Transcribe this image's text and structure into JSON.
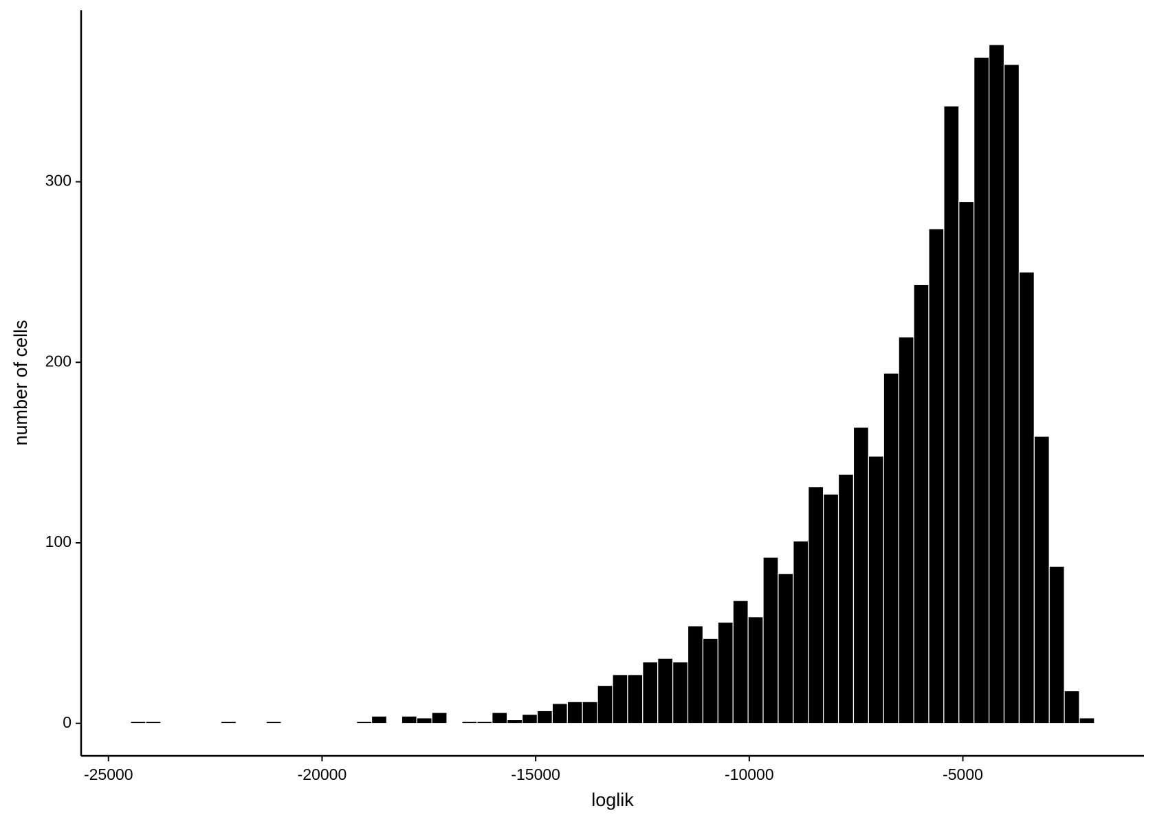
{
  "chart_data": {
    "type": "histogram",
    "x_label": "loglik",
    "y_label": "number of cells",
    "bins": [
      -24480,
      -24127.5,
      -23775,
      -23422.5,
      -23070,
      -22717.5,
      -22365,
      -22012.5,
      -21660,
      -21307.5,
      -20955,
      -20602.5,
      -20250,
      -19897.5,
      -19545,
      -19192.5,
      -18840,
      -18487.5,
      -18135,
      -17782.5,
      -17430,
      -17077.5,
      -16725,
      -16372.5,
      -16020,
      -15667.5,
      -15315,
      -14962.5,
      -14610,
      -14257.5,
      -13905,
      -13552.5,
      -13200,
      -12847.5,
      -12495,
      -12142.5,
      -11790,
      -11437.5,
      -11085,
      -10732.5,
      -10380,
      -10027.5,
      -9675,
      -9322.5,
      -8970,
      -8617.5,
      -8265,
      -7912.5,
      -7560,
      -7207.5,
      -6855,
      -6502.5,
      -6150,
      -5797.5,
      -5445,
      -5092.5,
      -4740,
      -4387.5,
      -4035,
      -3682.5,
      -3330,
      -2977.5,
      -2625,
      -2272.5,
      -1920
    ],
    "values": [
      1,
      1,
      0,
      0,
      0,
      0,
      1,
      0,
      0,
      1,
      0,
      0,
      0,
      0,
      0,
      1,
      4,
      0,
      4,
      3,
      6,
      0,
      1,
      1,
      6,
      2,
      5,
      7,
      11,
      12,
      12,
      21,
      27,
      27,
      34,
      36,
      34,
      54,
      47,
      56,
      68,
      59,
      92,
      83,
      101,
      131,
      127,
      138,
      164,
      148,
      194,
      214,
      243,
      274,
      342,
      289,
      369,
      376,
      365,
      250,
      159,
      87,
      18,
      3
    ],
    "color": "#000000",
    "xlim": [
      -25640,
      -760
    ],
    "ylim": [
      -18,
      395
    ],
    "xticks": [
      -25000,
      -20000,
      -15000,
      -10000,
      -5000
    ],
    "yticks": [
      0,
      100,
      200,
      300
    ]
  }
}
